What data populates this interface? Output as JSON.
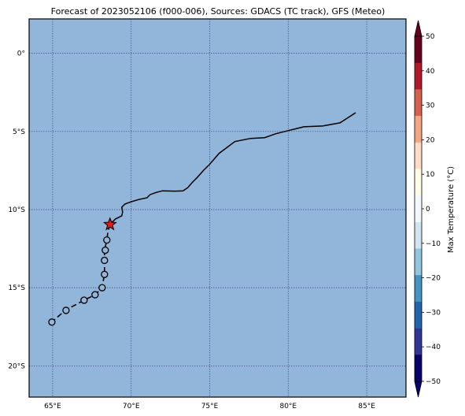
{
  "title": "Forecast of 2023052106 (f000-006), Sources: GDACS (TC track), GFS (Meteo)",
  "map": {
    "ocean_color": "#92b6da",
    "grid_color": "#3f4a7a",
    "lon_range": [
      63.5,
      87.5
    ],
    "lat_range": [
      -22,
      2.2
    ],
    "lon_ticks": [
      {
        "value": 65,
        "label": "65°E"
      },
      {
        "value": 70,
        "label": "70°E"
      },
      {
        "value": 75,
        "label": "75°E"
      },
      {
        "value": 80,
        "label": "80°E"
      },
      {
        "value": 85,
        "label": "85°E"
      }
    ],
    "lat_ticks": [
      {
        "value": 0,
        "label": "0°"
      },
      {
        "value": -5,
        "label": "5°S"
      },
      {
        "value": -10,
        "label": "10°S"
      },
      {
        "value": -15,
        "label": "15°S"
      },
      {
        "value": -20,
        "label": "20°S"
      }
    ],
    "coastline": [
      [
        84.3,
        -3.8
      ],
      [
        83.3,
        -4.45
      ],
      [
        82.2,
        -4.65
      ],
      [
        81.0,
        -4.7
      ],
      [
        80.0,
        -4.95
      ],
      [
        79.2,
        -5.15
      ],
      [
        78.5,
        -5.4
      ],
      [
        77.6,
        -5.45
      ],
      [
        76.6,
        -5.65
      ],
      [
        75.6,
        -6.4
      ],
      [
        75.0,
        -7.1
      ],
      [
        74.6,
        -7.5
      ],
      [
        74.2,
        -7.95
      ],
      [
        73.9,
        -8.25
      ],
      [
        73.6,
        -8.6
      ],
      [
        73.3,
        -8.8
      ],
      [
        72.8,
        -8.82
      ],
      [
        72.0,
        -8.8
      ],
      [
        71.6,
        -8.9
      ],
      [
        71.2,
        -9.05
      ],
      [
        71.0,
        -9.25
      ],
      [
        70.5,
        -9.35
      ],
      [
        70.0,
        -9.5
      ],
      [
        69.6,
        -9.65
      ],
      [
        69.4,
        -9.85
      ],
      [
        69.45,
        -10.15
      ],
      [
        69.4,
        -10.4
      ],
      [
        69.0,
        -10.6
      ],
      [
        68.85,
        -10.75
      ],
      [
        68.6,
        -10.85
      ]
    ],
    "track": [
      [
        68.65,
        -10.95
      ],
      [
        68.5,
        -11.55
      ],
      [
        68.45,
        -11.95
      ],
      [
        68.3,
        -12.6
      ],
      [
        68.3,
        -13.25
      ],
      [
        68.3,
        -14.1
      ],
      [
        68.15,
        -15.0
      ],
      [
        67.7,
        -15.45
      ],
      [
        67.0,
        -15.8
      ],
      [
        65.8,
        -16.45
      ],
      [
        65.0,
        -17.15
      ]
    ],
    "track_markers": [
      [
        68.45,
        -11.95
      ],
      [
        68.35,
        -12.6
      ],
      [
        68.3,
        -13.25
      ],
      [
        68.3,
        -14.15
      ],
      [
        68.15,
        -15.0
      ],
      [
        67.7,
        -15.45
      ],
      [
        67.0,
        -15.8
      ],
      [
        65.85,
        -16.45
      ],
      [
        64.95,
        -17.2
      ]
    ],
    "current_position": {
      "lon": 68.65,
      "lat": -10.95,
      "color": "#e41a1c"
    }
  },
  "colorbar": {
    "label": "Max Temperature (°C)",
    "ticks": [
      "50",
      "40",
      "30",
      "20",
      "10",
      "0",
      "−10",
      "−20",
      "−30",
      "−40",
      "−50"
    ],
    "colors": [
      "#67001f",
      "#b2182b",
      "#d6604d",
      "#f4a582",
      "#fddbc7",
      "#fffde8",
      "#f2f9fd",
      "#d1e5f0",
      "#92c5de",
      "#4393c3",
      "#2166ac",
      "#313695",
      "#08006a"
    ],
    "extend_top_color": "#67001f",
    "extend_bottom_color": "#08006a"
  }
}
